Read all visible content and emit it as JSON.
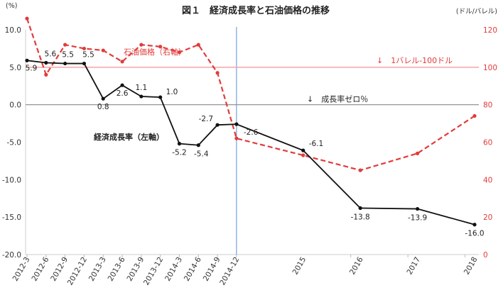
{
  "chart_data": {
    "type": "line",
    "title": "図１　経済成長率と石油価格の推移",
    "y_left_unit": "(%)",
    "y_right_unit": "(ドル/バレル)",
    "categories": [
      "2012-3",
      "2012-6",
      "2012-9",
      "2012-12",
      "2013-3",
      "2013-6",
      "2013-9",
      "2013-12",
      "2014-3",
      "2014-6",
      "2014-9",
      "2014-12",
      "2015",
      "2016",
      "2017",
      "2018"
    ],
    "x": [
      0,
      1,
      2,
      3,
      4,
      5,
      6,
      7,
      8,
      9,
      10,
      11,
      14.5,
      17.5,
      20.5,
      23.5
    ],
    "series": [
      {
        "name": "経済成長率（左軸）",
        "axis": "left",
        "color": "#111111",
        "values": [
          5.9,
          5.6,
          5.5,
          5.5,
          0.8,
          2.6,
          1.1,
          1.0,
          -5.2,
          -5.4,
          -2.7,
          -2.6,
          -6.1,
          -13.8,
          -13.9,
          -16.0
        ],
        "labels": [
          "5.9",
          "5.6",
          "5.5",
          "5.5",
          "0.8",
          "2.6",
          "1.1",
          "1.0",
          "-5.2",
          "-5.4",
          "-2.7",
          "-2.6",
          "-6.1",
          "-13.8",
          "-13.9",
          "-16.0"
        ]
      },
      {
        "name": "石油価格（右軸）",
        "axis": "right",
        "color": "#e23b3b",
        "values": [
          126,
          96,
          112,
          110,
          109,
          103,
          112,
          111,
          108,
          112,
          97,
          62,
          53,
          45,
          54,
          74
        ]
      }
    ],
    "y_left": {
      "range": [
        -20,
        10
      ],
      "ticks": [
        "10.0",
        "5.0",
        "0.0",
        "-5.0",
        "-10.0",
        "-15.0",
        "-20.0"
      ],
      "values": [
        10,
        5,
        0,
        -5,
        -10,
        -15,
        -20
      ]
    },
    "y_right": {
      "range": [
        0,
        120
      ],
      "ticks": [
        "120",
        "100",
        "80",
        "60",
        "40",
        "20",
        "0"
      ],
      "values": [
        120,
        100,
        80,
        60,
        40,
        20,
        0
      ]
    },
    "reference_lines": [
      {
        "axis": "right",
        "value": 100,
        "label": "↓　1バレル-100ドル",
        "color": "#f4a5a5"
      },
      {
        "axis": "left",
        "value": 0,
        "label": "↓　成長率ゼロ％",
        "color": "#888888"
      }
    ],
    "vertical_marker": {
      "x": 11,
      "color": "#5b8fd6"
    },
    "grid": false
  }
}
